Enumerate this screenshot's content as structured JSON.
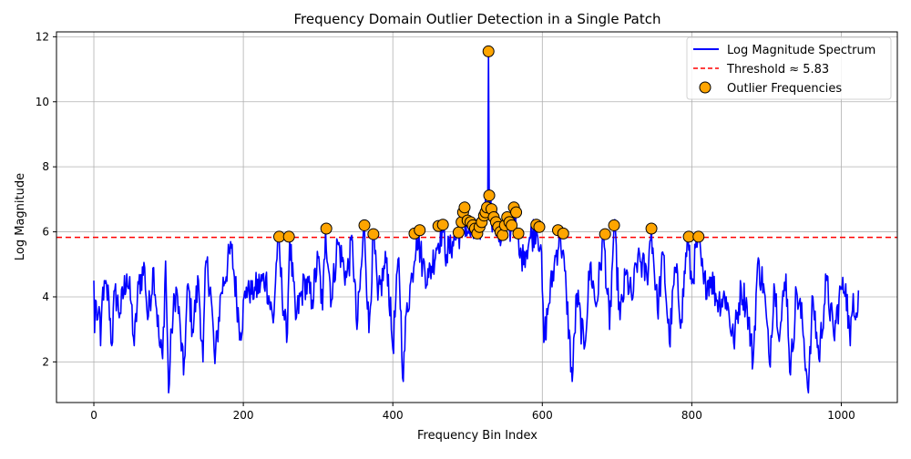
{
  "chart_data": {
    "type": "line",
    "title": "Frequency Domain Outlier Detection in a Single Patch",
    "xlabel": "Frequency Bin Index",
    "ylabel": "Log Magnitude",
    "xlim": [
      -50,
      1075
    ],
    "ylim": [
      0.75,
      12.15
    ],
    "xticks": [
      0,
      200,
      400,
      600,
      800,
      1000
    ],
    "yticks": [
      2,
      4,
      6,
      8,
      10,
      12
    ],
    "grid": true,
    "legend_position": "upper right",
    "threshold": {
      "value": 5.83,
      "label": "Threshold ≈ 5.83",
      "color": "#ff0000",
      "style": "dashed"
    },
    "series": [
      {
        "name": "Log Magnitude Spectrum",
        "color": "#0000ff",
        "n_bins": 1024,
        "center_bin": 528,
        "anchor_points": [
          [
            0,
            4.5
          ],
          [
            1,
            2.9
          ],
          [
            2,
            3.9
          ],
          [
            5,
            3.3
          ],
          [
            8,
            3.5
          ],
          [
            9,
            2.5
          ],
          [
            12,
            4.3
          ],
          [
            20,
            4.0
          ],
          [
            24,
            2.5
          ],
          [
            28,
            4.2
          ],
          [
            35,
            3.5
          ],
          [
            44,
            4.7
          ],
          [
            50,
            3.8
          ],
          [
            54,
            2.5
          ],
          [
            60,
            4.4
          ],
          [
            68,
            4.9
          ],
          [
            72,
            3.3
          ],
          [
            80,
            4.9
          ],
          [
            88,
            2.5
          ],
          [
            92,
            2.1
          ],
          [
            96,
            5.1
          ],
          [
            100,
            1.05
          ],
          [
            104,
            3.0
          ],
          [
            110,
            4.3
          ],
          [
            116,
            2.9
          ],
          [
            120,
            1.6
          ],
          [
            126,
            4.4
          ],
          [
            132,
            3.0
          ],
          [
            140,
            4.5
          ],
          [
            146,
            2.0
          ],
          [
            150,
            5.1
          ],
          [
            156,
            4.3
          ],
          [
            162,
            1.95
          ],
          [
            170,
            4.1
          ],
          [
            184,
            5.5
          ],
          [
            196,
            2.9
          ],
          [
            204,
            4.3
          ],
          [
            216,
            4.2
          ],
          [
            230,
            4.6
          ],
          [
            240,
            3.2
          ],
          [
            246,
            5.8
          ],
          [
            258,
            2.6
          ],
          [
            262,
            5.8
          ],
          [
            270,
            3.3
          ],
          [
            282,
            4.5
          ],
          [
            292,
            3.9
          ],
          [
            300,
            5.2
          ],
          [
            306,
            3.6
          ],
          [
            310,
            6.1
          ],
          [
            318,
            3.9
          ],
          [
            326,
            5.7
          ],
          [
            338,
            4.6
          ],
          [
            346,
            5.7
          ],
          [
            352,
            3.0
          ],
          [
            362,
            6.2
          ],
          [
            368,
            2.9
          ],
          [
            374,
            5.9
          ],
          [
            380,
            3.9
          ],
          [
            392,
            5.2
          ],
          [
            400,
            2.4
          ],
          [
            408,
            5.2
          ],
          [
            414,
            1.4
          ],
          [
            418,
            3.5
          ],
          [
            426,
            4.7
          ],
          [
            432,
            6.0
          ],
          [
            440,
            5.0
          ],
          [
            448,
            4.6
          ],
          [
            458,
            5.5
          ],
          [
            466,
            6.1
          ],
          [
            472,
            5.3
          ],
          [
            480,
            5.7
          ],
          [
            488,
            5.9
          ],
          [
            494,
            6.5
          ],
          [
            500,
            6.0
          ],
          [
            510,
            5.9
          ],
          [
            516,
            6.1
          ],
          [
            522,
            6.6
          ],
          [
            527,
            6.9
          ],
          [
            528,
            11.55
          ],
          [
            529,
            7.1
          ],
          [
            534,
            6.4
          ],
          [
            540,
            6.1
          ],
          [
            546,
            5.8
          ],
          [
            552,
            6.4
          ],
          [
            558,
            6.1
          ],
          [
            562,
            6.6
          ],
          [
            566,
            5.8
          ],
          [
            570,
            5.2
          ],
          [
            576,
            5.4
          ],
          [
            584,
            5.8
          ],
          [
            592,
            6.2
          ],
          [
            598,
            5.6
          ],
          [
            602,
            2.6
          ],
          [
            608,
            3.7
          ],
          [
            616,
            5.0
          ],
          [
            624,
            6.0
          ],
          [
            632,
            4.2
          ],
          [
            640,
            1.4
          ],
          [
            646,
            4.1
          ],
          [
            656,
            2.4
          ],
          [
            664,
            5.0
          ],
          [
            672,
            3.7
          ],
          [
            682,
            5.9
          ],
          [
            690,
            3.0
          ],
          [
            696,
            6.2
          ],
          [
            704,
            3.3
          ],
          [
            712,
            4.7
          ],
          [
            720,
            3.9
          ],
          [
            728,
            5.3
          ],
          [
            740,
            4.6
          ],
          [
            746,
            6.1
          ],
          [
            754,
            3.6
          ],
          [
            762,
            5.3
          ],
          [
            770,
            2.6
          ],
          [
            778,
            4.9
          ],
          [
            786,
            3.3
          ],
          [
            794,
            5.8
          ],
          [
            800,
            4.4
          ],
          [
            808,
            5.8
          ],
          [
            816,
            4.4
          ],
          [
            826,
            4.6
          ],
          [
            834,
            3.9
          ],
          [
            846,
            4.0
          ],
          [
            856,
            2.6
          ],
          [
            866,
            4.3
          ],
          [
            874,
            3.7
          ],
          [
            882,
            2.0
          ],
          [
            888,
            5.0
          ],
          [
            896,
            4.4
          ],
          [
            904,
            1.95
          ],
          [
            910,
            4.4
          ],
          [
            918,
            2.9
          ],
          [
            926,
            4.7
          ],
          [
            932,
            1.6
          ],
          [
            940,
            4.2
          ],
          [
            948,
            3.2
          ],
          [
            956,
            1.05
          ],
          [
            962,
            4.0
          ],
          [
            970,
            2.1
          ],
          [
            980,
            4.5
          ],
          [
            990,
            2.8
          ],
          [
            1000,
            4.3
          ],
          [
            1006,
            4.4
          ],
          [
            1012,
            2.5
          ],
          [
            1016,
            4.1
          ],
          [
            1020,
            3.5
          ],
          [
            1023,
            4.2
          ]
        ]
      },
      {
        "name": "Outlier Frequencies",
        "type": "scatter",
        "color": "#ffa500",
        "edgecolor": "#000000",
        "points": [
          [
            248,
            5.85
          ],
          [
            261,
            5.85
          ],
          [
            311,
            6.1
          ],
          [
            362,
            6.2
          ],
          [
            374,
            5.93
          ],
          [
            429,
            5.95
          ],
          [
            436,
            6.05
          ],
          [
            461,
            6.18
          ],
          [
            467,
            6.22
          ],
          [
            488,
            5.98
          ],
          [
            492,
            6.3
          ],
          [
            494,
            6.6
          ],
          [
            496,
            6.75
          ],
          [
            500,
            6.35
          ],
          [
            504,
            6.3
          ],
          [
            507,
            6.2
          ],
          [
            510,
            6.1
          ],
          [
            513,
            5.95
          ],
          [
            516,
            6.15
          ],
          [
            519,
            6.3
          ],
          [
            522,
            6.5
          ],
          [
            524,
            6.6
          ],
          [
            526,
            6.75
          ],
          [
            528,
            11.55
          ],
          [
            529,
            7.12
          ],
          [
            532,
            6.7
          ],
          [
            535,
            6.45
          ],
          [
            538,
            6.3
          ],
          [
            541,
            6.15
          ],
          [
            544,
            6.0
          ],
          [
            547,
            5.9
          ],
          [
            550,
            6.2
          ],
          [
            553,
            6.45
          ],
          [
            556,
            6.3
          ],
          [
            559,
            6.2
          ],
          [
            562,
            6.75
          ],
          [
            565,
            6.6
          ],
          [
            568,
            5.95
          ],
          [
            592,
            6.22
          ],
          [
            596,
            6.15
          ],
          [
            621,
            6.05
          ],
          [
            628,
            5.95
          ],
          [
            684,
            5.93
          ],
          [
            696,
            6.2
          ],
          [
            746,
            6.1
          ],
          [
            796,
            5.85
          ],
          [
            809,
            5.85
          ]
        ]
      }
    ]
  }
}
